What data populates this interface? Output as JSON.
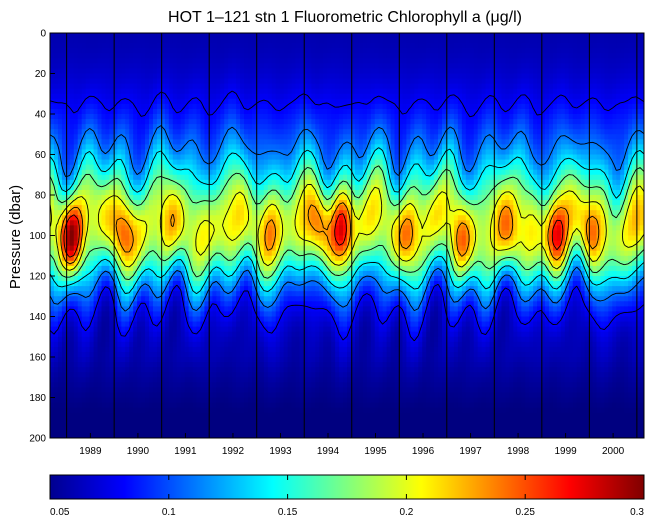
{
  "chart_data": {
    "type": "heatmap",
    "title": "HOT 1–121  stn 1  Fluorometric Chlorophyll a (μg/l)",
    "xlabel": "",
    "ylabel": "Pressure (dbar)",
    "x_ticks": [
      "1989",
      "1990",
      "1991",
      "1992",
      "1993",
      "1994",
      "1995",
      "1996",
      "1997",
      "1998",
      "1999",
      "2000"
    ],
    "y_ticks": [
      0,
      20,
      40,
      60,
      80,
      100,
      120,
      140,
      160,
      180,
      200
    ],
    "ylim": [
      0,
      200
    ],
    "y_reversed": true,
    "colorbar": {
      "ticks": [
        0.05,
        0.1,
        0.15,
        0.2,
        0.25,
        0.3
      ],
      "tick_labels": [
        "0.05",
        "0.1",
        "0.15",
        "0.2",
        "0.25",
        "0.3"
      ],
      "range": [
        0.05,
        0.3
      ],
      "colormap": "jet"
    },
    "contours": true,
    "year_markers": true,
    "grid": false,
    "max_value_depth_dbar": 100,
    "high_value_events": [
      {
        "year": 1988.6,
        "depth": 100,
        "value": 0.29
      },
      {
        "year": 1989.7,
        "depth": 100,
        "value": 0.25
      },
      {
        "year": 1990.7,
        "depth": 100,
        "value": 0.22
      },
      {
        "year": 1991.8,
        "depth": 100,
        "value": 0.21
      },
      {
        "year": 1992.8,
        "depth": 100,
        "value": 0.23
      },
      {
        "year": 1993.8,
        "depth": 95,
        "value": 0.24
      },
      {
        "year": 1994.3,
        "depth": 97,
        "value": 0.27
      },
      {
        "year": 1995.7,
        "depth": 100,
        "value": 0.24
      },
      {
        "year": 1996.8,
        "depth": 105,
        "value": 0.24
      },
      {
        "year": 1997.8,
        "depth": 103,
        "value": 0.25
      },
      {
        "year": 1998.8,
        "depth": 100,
        "value": 0.27
      },
      {
        "year": 1999.5,
        "depth": 100,
        "value": 0.24
      },
      {
        "year": 2000.6,
        "depth": 100,
        "value": 0.22
      }
    ]
  }
}
